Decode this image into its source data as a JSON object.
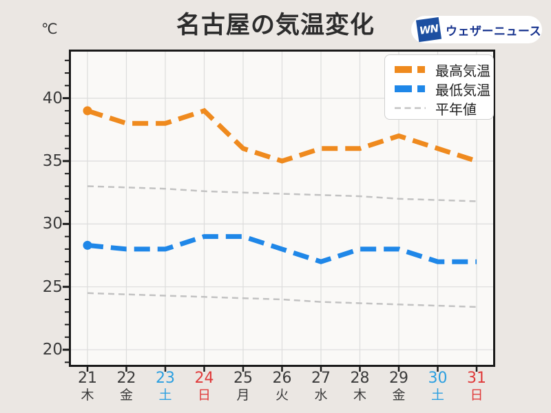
{
  "page": {
    "title": "名古屋の気温変化",
    "y_axis_unit": "℃"
  },
  "logo": {
    "mark_text": "WN",
    "brand_text": "ウェザーニュース"
  },
  "legend": {
    "items": [
      {
        "label": "最高気温",
        "series_key": "max"
      },
      {
        "label": "最低気温",
        "series_key": "min"
      },
      {
        "label": "平年値",
        "series_key": "normal"
      }
    ]
  },
  "colors": {
    "max_line": "#ef8a1e",
    "min_line": "#1f87e8",
    "normal_line": "#c2c2c2",
    "weekday_label": "#3a3a3a",
    "saturday_label": "#2b9fe0",
    "sunday_label": "#e03a3a",
    "axis": "#1a1a1a",
    "grid": "#dcdcdc",
    "plot_bg": "#faf9f7",
    "page_bg": "#ebe7e3",
    "logo_mark_bg": "#1c4fa1",
    "logo_text": "#17338e"
  },
  "chart_data": {
    "type": "line",
    "title": "名古屋の気温変化",
    "unit": "℃",
    "categories": [
      "21",
      "22",
      "23",
      "24",
      "25",
      "26",
      "27",
      "28",
      "29",
      "30",
      "31"
    ],
    "weekdays": [
      "木",
      "金",
      "土",
      "日",
      "月",
      "火",
      "水",
      "木",
      "金",
      "土",
      "日"
    ],
    "day_types": [
      "weekday",
      "weekday",
      "saturday",
      "sunday",
      "weekday",
      "weekday",
      "weekday",
      "weekday",
      "weekday",
      "saturday",
      "sunday"
    ],
    "series": [
      {
        "name": "最高気温",
        "key": "max",
        "style": "thick",
        "start_dot": true,
        "values": [
          39,
          38,
          38,
          39,
          36,
          35,
          36,
          36,
          37,
          36,
          35
        ]
      },
      {
        "name": "最低気温",
        "key": "min",
        "style": "thick",
        "start_dot": true,
        "values": [
          28.3,
          28,
          28,
          29,
          29,
          28,
          27,
          28,
          28,
          27,
          27
        ]
      },
      {
        "name": "平年値(最高)",
        "key": "normal_max",
        "style": "thin",
        "start_dot": false,
        "values": [
          33.0,
          32.9,
          32.8,
          32.6,
          32.5,
          32.4,
          32.3,
          32.2,
          32.0,
          31.9,
          31.8
        ]
      },
      {
        "name": "平年値(最低)",
        "key": "normal_min",
        "style": "thin",
        "start_dot": false,
        "values": [
          24.5,
          24.4,
          24.3,
          24.2,
          24.1,
          24.0,
          23.8,
          23.7,
          23.6,
          23.5,
          23.4
        ]
      }
    ],
    "y_ticks": [
      20,
      25,
      30,
      35,
      40
    ],
    "y_minor_tick_step": 1,
    "ylim": [
      18.8,
      43.7
    ],
    "grid": true,
    "legend_position": "top-right"
  }
}
